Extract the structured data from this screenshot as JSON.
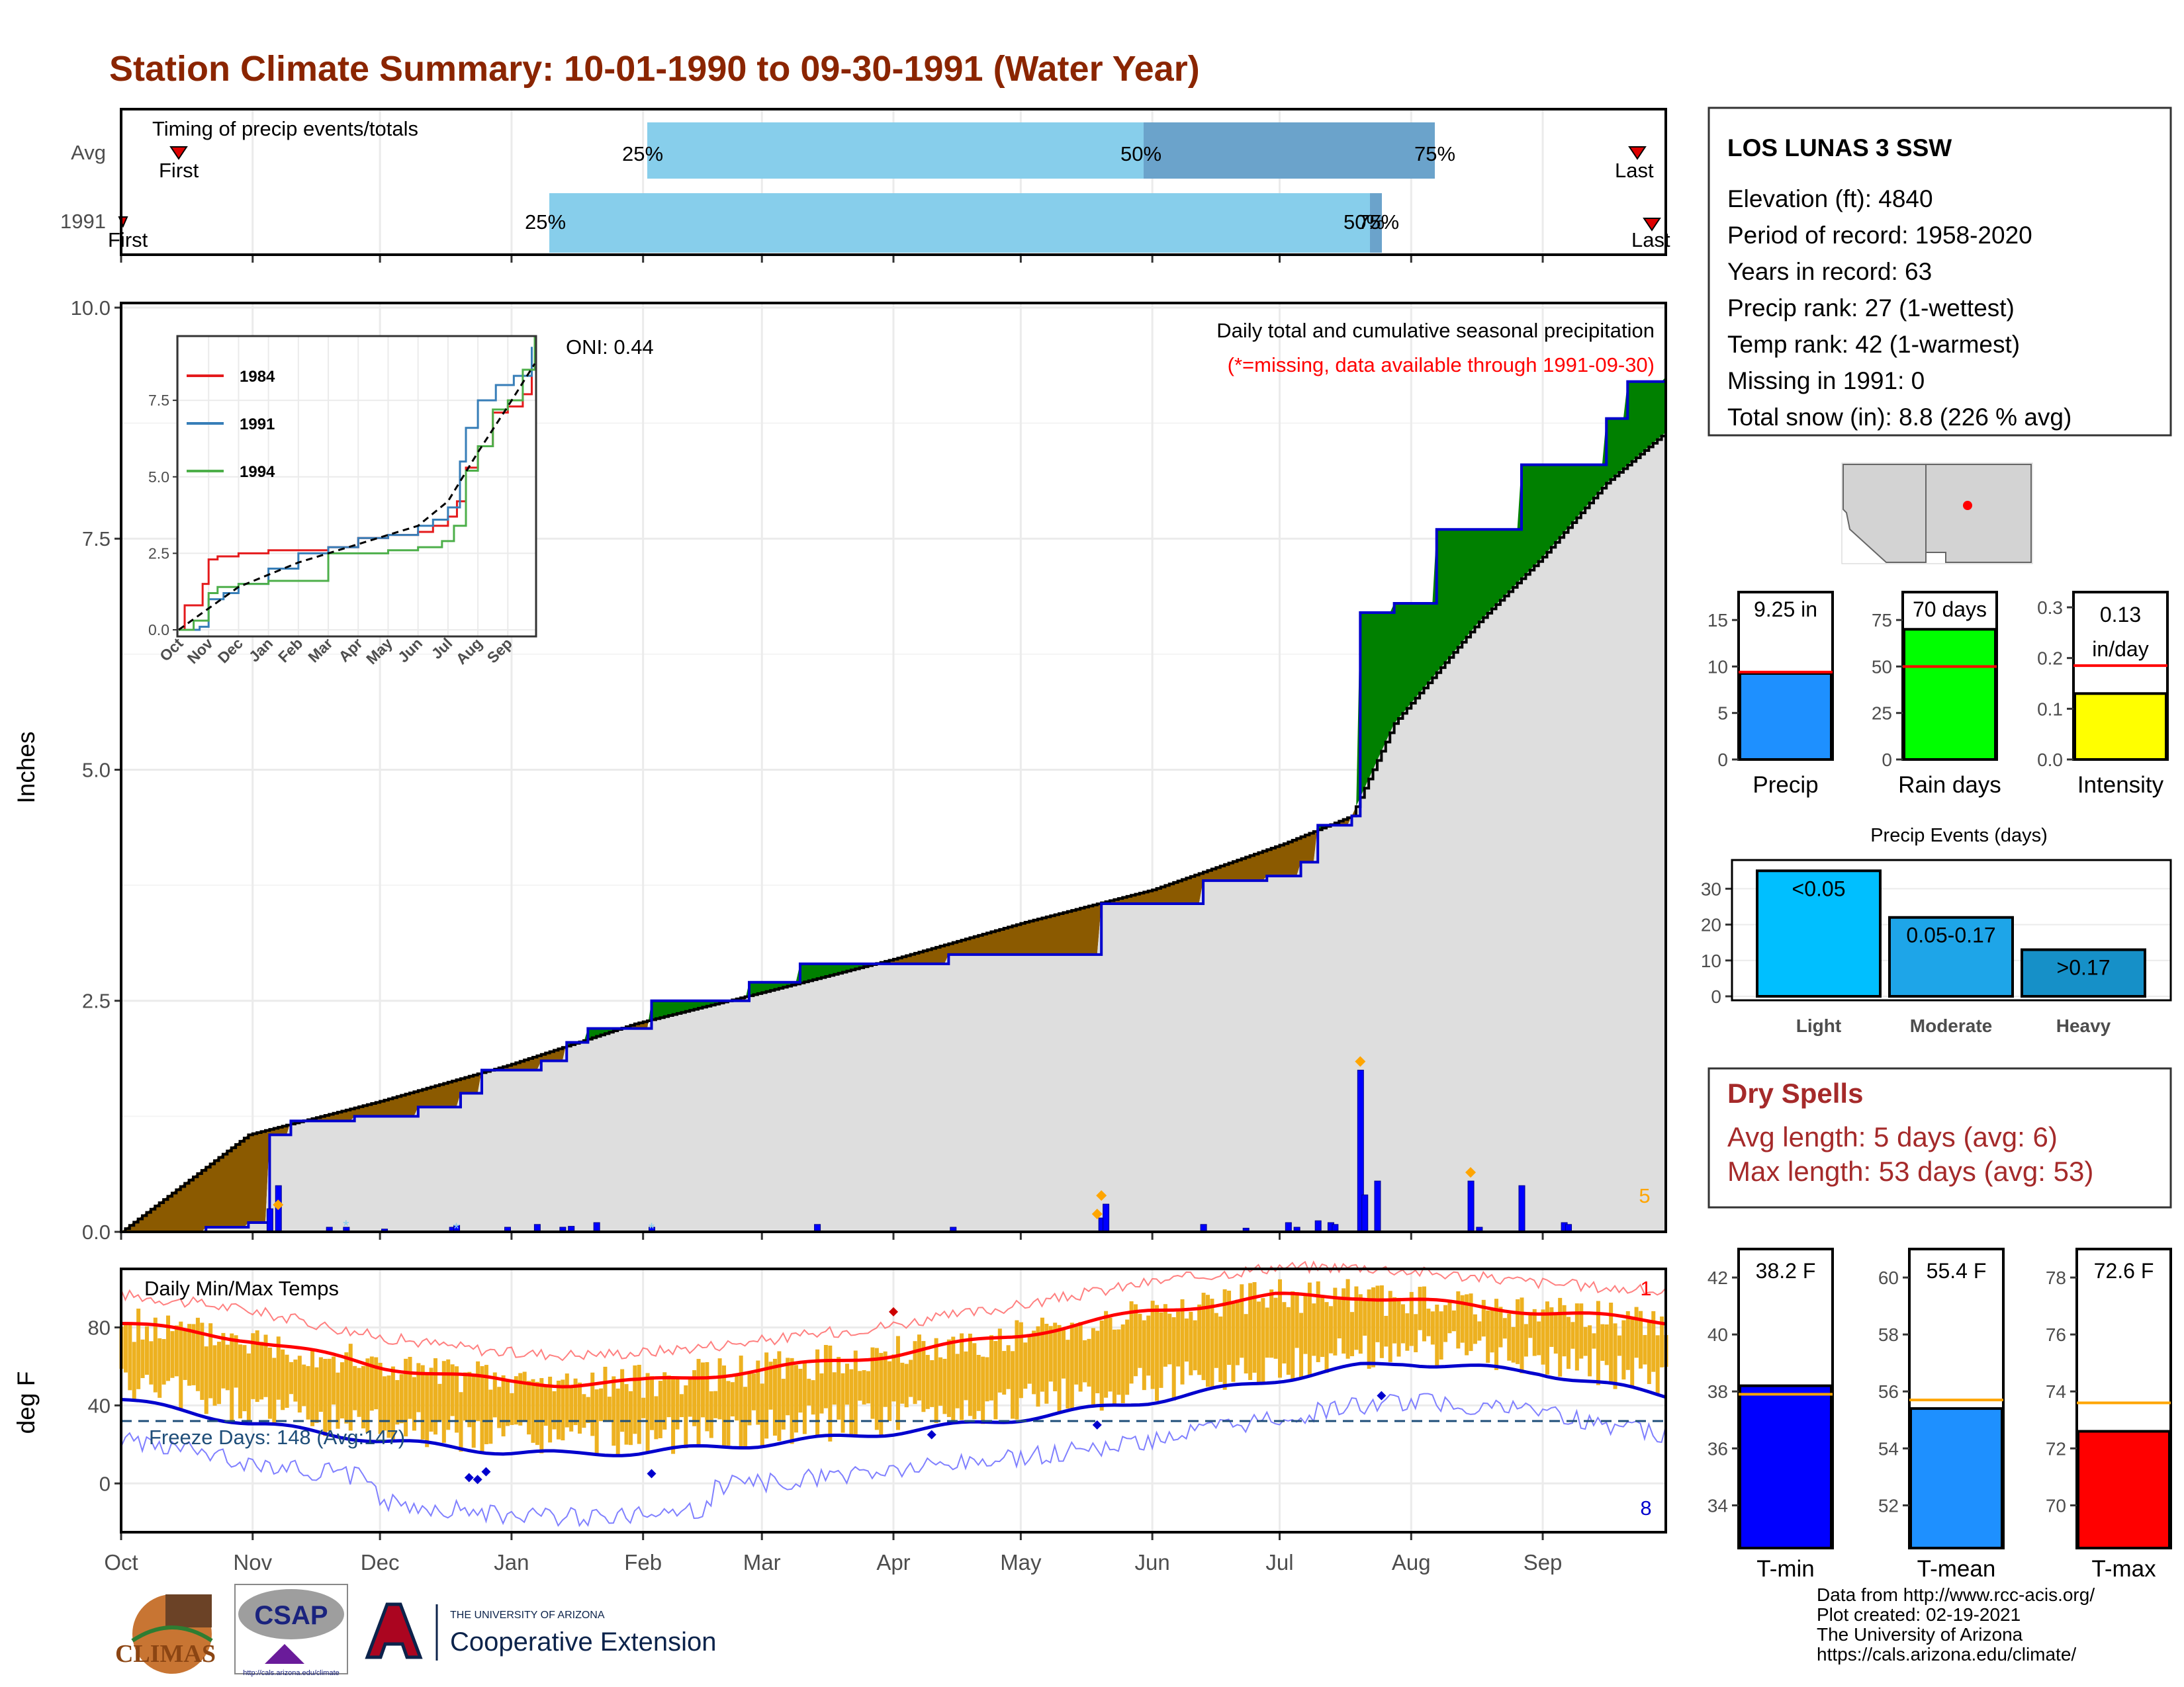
{
  "title": "Station Climate Summary: 10-01-1990 to 09-30-1991 (Water Year)",
  "colors": {
    "title": "#8B2500",
    "ppt_above": "#008000",
    "ppt_below": "#8B5A00",
    "ppt_line": "#0000CD",
    "temp_bar": "#EDB120",
    "tmax_line": "#FF0000",
    "tmin_line": "#0000CD",
    "avg_ppt": "#000000"
  },
  "timing": {
    "label": "Timing of precip events/totals",
    "rows": [
      "Avg",
      "1991"
    ],
    "avg": {
      "first_label": "First",
      "last_label": "Last",
      "p25": "25%",
      "p50": "50%",
      "p75": "75%"
    },
    "y1991": {
      "first_label": "First",
      "last_label": "Last",
      "p25": "25%",
      "p50": "50%",
      "p75": "75%"
    }
  },
  "precip_panel": {
    "ylabel": "Inches",
    "yticks": [
      "0.0",
      "2.5",
      "5.0",
      "7.5",
      "10.0"
    ],
    "header": "Daily total and cumulative seasonal precipitation",
    "subheader": "(*=missing, data available through 1991-09-30)",
    "oni": "ONI: 0.44",
    "count_label": "5",
    "months": [
      "Oct",
      "Nov",
      "Dec",
      "Jan",
      "Feb",
      "Mar",
      "Apr",
      "May",
      "Jun",
      "Jul",
      "Aug",
      "Sep"
    ]
  },
  "inset": {
    "yticks": [
      "0.0",
      "2.5",
      "5.0",
      "7.5"
    ],
    "xticks": [
      "Oct",
      "Nov",
      "Dec",
      "Jan",
      "Feb",
      "Mar",
      "Apr",
      "May",
      "Jun",
      "Jul",
      "Aug",
      "Sep"
    ],
    "legend": [
      {
        "name": "1984",
        "color": "#E41A1C"
      },
      {
        "name": "1991",
        "color": "#377EB8"
      },
      {
        "name": "1994",
        "color": "#4DAF4A"
      }
    ]
  },
  "temp_panel": {
    "ylabel": "deg F",
    "yticks": [
      "0",
      "40",
      "80"
    ],
    "header": "Daily Min/Max Temps",
    "freeze": "Freeze Days: 148 (Avg:147)",
    "count_max": "1",
    "count_min": "8",
    "months": [
      "Oct",
      "Nov",
      "Dec",
      "Jan",
      "Feb",
      "Mar",
      "Apr",
      "May",
      "Jun",
      "Jul",
      "Aug",
      "Sep"
    ]
  },
  "station": {
    "name": "LOS LUNAS 3 SSW",
    "lines": [
      "Elevation (ft): 4840",
      "Period of record: 1958-2020",
      "Years in record: 63",
      "Precip rank: 27 (1-wettest)",
      "Temp rank: 42 (1-warmest)",
      "Missing in 1991: 0",
      "Total snow (in): 8.8 (226 % avg)"
    ]
  },
  "summary_bars": [
    {
      "label": "Precip",
      "value_label": "9.25 in",
      "value": 9.25,
      "avg": 9.4,
      "ymax": 18,
      "ticks": [
        "0",
        "5",
        "10",
        "15"
      ],
      "tickvals": [
        0,
        5,
        10,
        15
      ],
      "color": "#1E90FF"
    },
    {
      "label": "Rain days",
      "value_label": "70 days",
      "value": 70,
      "avg": 50,
      "ymax": 90,
      "ticks": [
        "0",
        "25",
        "50",
        "75"
      ],
      "tickvals": [
        0,
        25,
        50,
        75
      ],
      "color": "#00FF00"
    },
    {
      "label": "Intensity",
      "value_label": "0.13 in/day",
      "value_label_1": "0.13",
      "value_label_2": "in/day",
      "value": 0.13,
      "avg": 0.185,
      "ymax": 0.33,
      "ticks": [
        "0.0",
        "0.1",
        "0.2",
        "0.3"
      ],
      "tickvals": [
        0,
        0.1,
        0.2,
        0.3
      ],
      "color": "#FFFF00"
    }
  ],
  "precip_events": {
    "title": "Precip Events (days)",
    "categories": [
      "Light",
      "Moderate",
      "Heavy"
    ],
    "bar_labels": [
      "<0.05",
      "0.05-0.17",
      ">0.17"
    ],
    "values": [
      35,
      22,
      13
    ],
    "colors": [
      "#00BFFF",
      "#1EA5E8",
      "#1690C8"
    ],
    "yticks": [
      "0",
      "10",
      "20",
      "30"
    ]
  },
  "dry_spells": {
    "title": "Dry Spells",
    "avg": "Avg length: 5 days (avg: 6)",
    "max": "Max length: 53 days (avg: 53)"
  },
  "temp_bars": [
    {
      "label": "T-min",
      "value_label": "38.2 F",
      "value": 38.2,
      "avg": 37.9,
      "ymin": 32.5,
      "ymax": 43,
      "ticks": [
        "34",
        "36",
        "38",
        "40",
        "42"
      ],
      "tickvals": [
        34,
        36,
        38,
        40,
        42
      ],
      "color": "#0000FF"
    },
    {
      "label": "T-mean",
      "value_label": "55.4 F",
      "value": 55.4,
      "avg": 55.7,
      "ymin": 50.5,
      "ymax": 61,
      "ticks": [
        "52",
        "54",
        "56",
        "58",
        "60"
      ],
      "tickvals": [
        52,
        54,
        56,
        58,
        60
      ],
      "color": "#1E90FF"
    },
    {
      "label": "T-max",
      "value_label": "72.6 F",
      "value": 72.6,
      "avg": 73.6,
      "ymin": 68.5,
      "ymax": 79,
      "ticks": [
        "70",
        "72",
        "74",
        "76",
        "78"
      ],
      "tickvals": [
        70,
        72,
        74,
        76,
        78
      ],
      "color": "#FF0000"
    }
  ],
  "footer": {
    "lines": [
      "Data from http://www.rcc-acis.org/",
      "Plot created: 02-19-2021",
      "The University of Arizona",
      "https://cals.arizona.edu/climate/"
    ],
    "logo_climas": "CLIMAS",
    "logo_csap": "CSAP",
    "logo_csap_url": "http://cals.arizona.edu/climate",
    "ua_small": "THE UNIVERSITY OF ARIZONA",
    "ua_big": "Cooperative Extension"
  },
  "chart_data": [
    {
      "type": "area",
      "title": "Daily total and cumulative seasonal precipitation",
      "ylabel": "Inches",
      "ylim": [
        0,
        10
      ],
      "x_months": [
        "Oct",
        "Nov",
        "Dec",
        "Jan",
        "Feb",
        "Mar",
        "Apr",
        "May",
        "Jun",
        "Jul",
        "Aug",
        "Sep"
      ],
      "series": [
        {
          "name": "1991",
          "x_day": [
            0,
            20,
            30,
            35,
            40,
            55,
            70,
            80,
            85,
            99,
            105,
            110,
            125,
            148,
            160,
            175,
            195,
            215,
            230,
            231,
            245,
            255,
            270,
            278,
            282,
            290,
            292,
            300,
            310,
            318,
            330,
            345,
            350,
            355,
            364
          ],
          "values": [
            0.0,
            0.05,
            0.1,
            1.05,
            1.2,
            1.25,
            1.35,
            1.5,
            1.75,
            1.85,
            2.05,
            2.2,
            2.5,
            2.7,
            2.9,
            2.9,
            3.0,
            3.0,
            3.0,
            3.55,
            3.55,
            3.8,
            3.85,
            4.0,
            4.4,
            4.5,
            6.7,
            6.8,
            7.6,
            7.6,
            8.3,
            8.3,
            8.8,
            9.2,
            9.25
          ]
        },
        {
          "name": "Avg",
          "x_day": [
            0,
            30,
            60,
            91,
            121,
            152,
            182,
            213,
            243,
            274,
            290,
            300,
            320,
            335,
            350,
            364
          ],
          "values": [
            0.0,
            1.05,
            1.4,
            1.8,
            2.25,
            2.6,
            2.95,
            3.35,
            3.7,
            4.2,
            4.5,
            5.5,
            6.6,
            7.3,
            8.1,
            8.65
          ]
        }
      ],
      "daily_precip": {
        "x_day": [
          35,
          37,
          49,
          53,
          62,
          78,
          79,
          91,
          98,
          104,
          106,
          112,
          125,
          164,
          196,
          231,
          232,
          255,
          265,
          275,
          277,
          282,
          285,
          286,
          292,
          293,
          296,
          318,
          320,
          330,
          340,
          341
        ],
        "values": [
          0.25,
          0.5,
          0.05,
          0.05,
          0.03,
          0.05,
          0.07,
          0.05,
          0.08,
          0.05,
          0.06,
          0.1,
          0.05,
          0.08,
          0.05,
          0.15,
          0.3,
          0.08,
          0.04,
          0.1,
          0.05,
          0.12,
          0.1,
          0.08,
          1.75,
          0.4,
          0.55,
          0.55,
          0.05,
          0.5,
          0.1,
          0.08
        ]
      }
    },
    {
      "type": "line",
      "title": "Daily Min/Max Temps",
      "ylabel": "deg F",
      "ylim": [
        -25,
        110
      ],
      "x_months": [
        "Oct",
        "Nov",
        "Dec",
        "Jan",
        "Feb",
        "Mar",
        "Apr",
        "May",
        "Jun",
        "Jul",
        "Aug",
        "Sep"
      ],
      "series": [
        {
          "name": "Avg Tmax",
          "x_day": [
            0,
            30,
            61,
            91,
            105,
            122,
            150,
            181,
            211,
            242,
            272,
            292,
            303,
            334,
            364
          ],
          "values": [
            82,
            74,
            60,
            52,
            51,
            52,
            58,
            66,
            76,
            88,
            96,
            96,
            94,
            88,
            83
          ]
        },
        {
          "name": "Avg Tmin",
          "x_day": [
            0,
            30,
            61,
            91,
            105,
            122,
            150,
            181,
            211,
            242,
            272,
            292,
            303,
            334,
            364
          ],
          "values": [
            43,
            31,
            22,
            16,
            15,
            16,
            20,
            26,
            33,
            42,
            53,
            60,
            62,
            57,
            45
          ]
        }
      ],
      "freeze_line": 32
    },
    {
      "type": "line",
      "title": "Cumulative precipitation by year (inset)",
      "ylim": [
        0,
        9.6
      ],
      "series": [
        {
          "name": "1984",
          "x_month": [
            0,
            0.2,
            0.5,
            0.8,
            1.0,
            1.3,
            2.0,
            3.0,
            4.0,
            5.0,
            6.0,
            7.0,
            8.0,
            8.5,
            9.0,
            9.3,
            9.6,
            10.0,
            10.5,
            11.0,
            11.5,
            11.8
          ],
          "values": [
            0.0,
            0.8,
            0.8,
            1.5,
            2.3,
            2.4,
            2.5,
            2.6,
            2.6,
            2.7,
            3.0,
            3.1,
            3.2,
            3.4,
            3.7,
            4.2,
            5.3,
            6.0,
            7.1,
            7.3,
            7.7,
            8.6
          ]
        },
        {
          "name": "1991",
          "x_month": [
            0,
            0.7,
            1.0,
            1.5,
            2.0,
            3.0,
            4.0,
            5.0,
            6.0,
            7.0,
            8.0,
            8.5,
            9.0,
            9.4,
            9.6,
            10.0,
            10.6,
            11.2,
            11.8
          ],
          "values": [
            0.0,
            0.1,
            1.0,
            1.2,
            1.5,
            2.0,
            2.5,
            2.7,
            3.0,
            3.1,
            3.4,
            3.6,
            4.0,
            5.5,
            6.6,
            7.5,
            8.0,
            8.3,
            9.25
          ]
        },
        {
          "name": "1994",
          "x_month": [
            0,
            0.5,
            1.0,
            1.3,
            2.0,
            3.0,
            4.0,
            5.0,
            6.0,
            7.0,
            8.0,
            8.8,
            9.2,
            9.6,
            10.0,
            10.5,
            11.0,
            11.5,
            11.9
          ],
          "values": [
            0.0,
            0.3,
            1.2,
            1.4,
            1.5,
            1.6,
            1.6,
            2.5,
            2.5,
            2.6,
            2.7,
            2.9,
            3.4,
            5.2,
            6.0,
            7.2,
            7.5,
            8.5,
            9.6
          ]
        },
        {
          "name": "Avg",
          "x_month": [
            0,
            2,
            4,
            6,
            8,
            9,
            10,
            11,
            11.9
          ],
          "values": [
            0.0,
            1.4,
            2.2,
            2.8,
            3.4,
            4.2,
            5.8,
            7.3,
            8.7
          ]
        }
      ]
    }
  ]
}
